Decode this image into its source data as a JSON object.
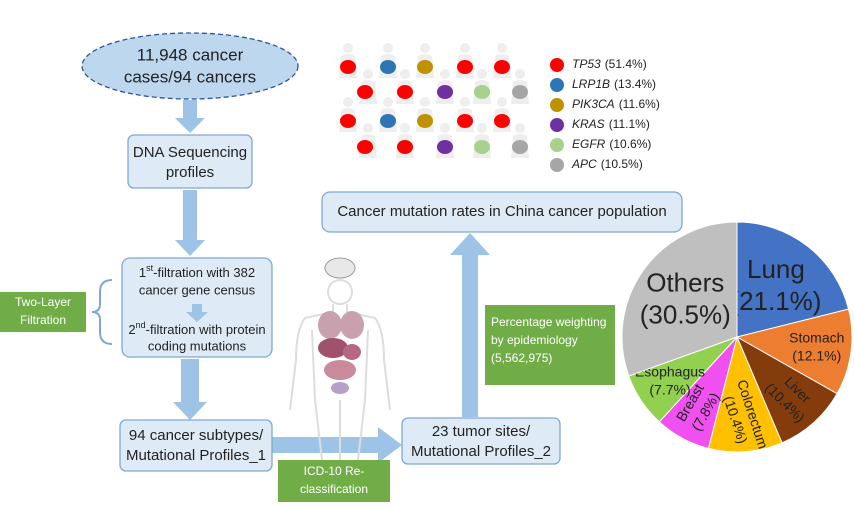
{
  "nodes": {
    "cases": {
      "lines": [
        "11,948 cancer",
        "cases/94 cancers"
      ]
    },
    "dna": {
      "lines": [
        "DNA Sequencing",
        "profiles"
      ]
    },
    "filtration": {
      "first": {
        "ordinal": "1",
        "suffix": "st",
        "rest": "-filtration with 382",
        "line2": "cancer gene census"
      },
      "second": {
        "ordinal": "2",
        "suffix": "nd",
        "rest": "-filtration with protein",
        "line2": "coding mutations"
      }
    },
    "subtypes": {
      "lines": [
        "94 cancer subtypes/",
        "Mutational Profiles_1"
      ]
    },
    "sites": {
      "lines": [
        "23 tumor sites/",
        "Mutational Profiles_2"
      ]
    },
    "mutation_rates": {
      "label": "Cancer mutation rates in China cancer population"
    }
  },
  "annotations": {
    "two_layer": [
      "Two-Layer",
      "Filtration"
    ],
    "icd": [
      "ICD-10 Re-",
      "classification"
    ],
    "weighting": [
      "Percentage weighting",
      "by epidemiology",
      "(5,562,975)"
    ]
  },
  "legend": [
    {
      "gene": "TP53",
      "rate": "(51.4%)",
      "color": "#ff0000"
    },
    {
      "gene": "LRP1B",
      "rate": "(13.4%)",
      "color": "#2e75b6"
    },
    {
      "gene": "PIK3CA",
      "rate": "(11.6%)",
      "color": "#bf9000"
    },
    {
      "gene": "KRAS",
      "rate": "(11.1%)",
      "color": "#7030a0"
    },
    {
      "gene": "EGFR",
      "rate": "(10.6%)",
      "color": "#a9d18e"
    },
    {
      "gene": "APC",
      "rate": "(10.5%)",
      "color": "#a6a6a6"
    }
  ],
  "chart_data": {
    "type": "pie",
    "categories": [
      "Lung",
      "Stomach",
      "Liver",
      "Colorectum",
      "Breast",
      "Esophagus",
      "Others"
    ],
    "values": [
      21.1,
      12.1,
      10.4,
      10.4,
      7.8,
      7.7,
      30.5
    ],
    "value_labels": [
      "(21.1%)",
      "(12.1%)",
      "(10.4%)",
      "(10.4%)",
      "(7.8%)",
      "(7.7%)",
      "(30.5%)"
    ],
    "colors": [
      "#4472c4",
      "#ed7d31",
      "#843c0c",
      "#ffc000",
      "#f050f0",
      "#92d050",
      "#bfbfbf"
    ]
  }
}
